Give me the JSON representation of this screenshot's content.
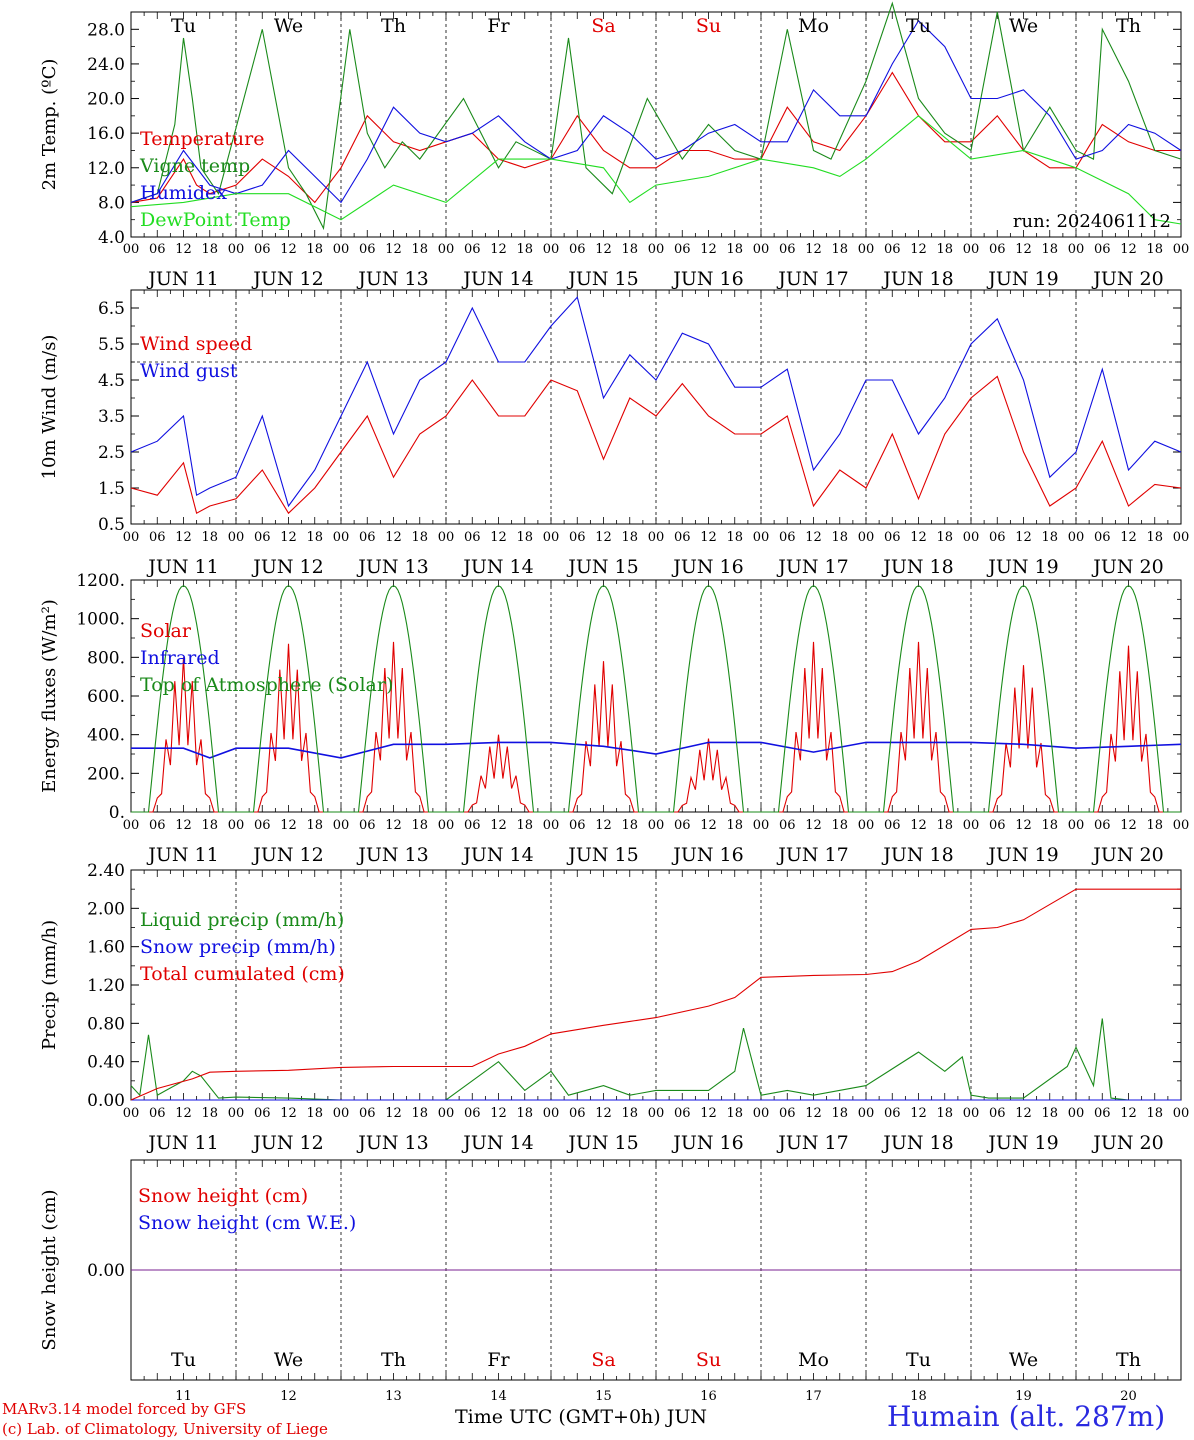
{
  "footer": {
    "model": "MARv3.14 model forced by GFS",
    "lab": "(c) Lab. of Climatology, University of Liege",
    "xaxis_title": "Time UTC (GMT+0h) JUN",
    "station": "Humain (alt. 287m)"
  },
  "colors": {
    "red": "#e00000",
    "blue": "#1010e0",
    "green": "#1a8a1a",
    "lightgreen": "#22dd22",
    "purple": "#7a2090"
  },
  "axis": {
    "hour_labels": [
      "00",
      "06",
      "12",
      "18"
    ],
    "day_labels": [
      "JUN 11",
      "JUN 12",
      "JUN 13",
      "JUN 14",
      "JUN 15",
      "JUN 16",
      "JUN 17",
      "JUN 18",
      "JUN 19",
      "JUN 20"
    ],
    "weekdays": [
      "Tu",
      "We",
      "Th",
      "Fr",
      "Sa",
      "Su",
      "Mo",
      "Tu",
      "We",
      "Th"
    ],
    "weekday_colors": [
      "#000000",
      "#000000",
      "#000000",
      "#000000",
      "#e00000",
      "#e00000",
      "#000000",
      "#000000",
      "#000000",
      "#000000"
    ],
    "day_numbers": [
      "11",
      "12",
      "13",
      "14",
      "15",
      "16",
      "17",
      "18",
      "19",
      "20"
    ]
  },
  "chart_data": [
    {
      "type": "line",
      "id": "temp",
      "ylabel": "2m Temp. (ºC)",
      "ylim": [
        4,
        30
      ],
      "yticks": [
        "4.0",
        "8.0",
        "12.0",
        "16.0",
        "20.0",
        "24.0",
        "28.0"
      ],
      "ytick_values": [
        4,
        8,
        12,
        16,
        20,
        24,
        28
      ],
      "annotation": "run: 2024061112",
      "series": [
        {
          "name": "Temperature",
          "color": "#e00000",
          "x": [
            0,
            6,
            12,
            15,
            18,
            24,
            30,
            36,
            42,
            48,
            54,
            60,
            66,
            72,
            78,
            84,
            90,
            96,
            102,
            108,
            114,
            120,
            126,
            132,
            138,
            144,
            150,
            156,
            162,
            168,
            174,
            180,
            186,
            192,
            198,
            204,
            210,
            216,
            222,
            228,
            234,
            240
          ],
          "y": [
            8,
            8.5,
            13,
            10,
            9,
            10,
            13,
            11,
            8,
            12,
            18,
            15,
            14,
            15,
            16,
            13,
            12,
            13,
            18,
            14,
            12,
            12,
            14,
            14,
            13,
            13,
            19,
            15,
            14,
            18,
            23,
            18,
            15,
            15,
            18,
            14,
            12,
            12,
            17,
            15,
            14,
            14
          ]
        },
        {
          "name": "Vigne temp",
          "color": "#1a8a1a",
          "x": [
            0,
            6,
            10,
            12,
            14,
            16,
            20,
            30,
            36,
            40,
            44,
            50,
            54,
            58,
            62,
            66,
            76,
            84,
            88,
            96,
            100,
            104,
            110,
            118,
            126,
            132,
            138,
            144,
            150,
            156,
            160,
            168,
            174,
            180,
            186,
            192,
            198,
            204,
            210,
            216,
            220,
            222,
            228,
            234,
            240
          ],
          "y": [
            8,
            9,
            17,
            27,
            20,
            12,
            9,
            28,
            12,
            9,
            5,
            28,
            16,
            12,
            15,
            13,
            20,
            12,
            15,
            13,
            27,
            12,
            9,
            20,
            13,
            17,
            14,
            13,
            28,
            14,
            13,
            22,
            31,
            20,
            16,
            14,
            30,
            14,
            19,
            14,
            13,
            28,
            22,
            14,
            13
          ]
        },
        {
          "name": "Humidex",
          "color": "#1010e0",
          "x": [
            0,
            6,
            12,
            18,
            24,
            30,
            36,
            42,
            48,
            54,
            60,
            66,
            72,
            78,
            84,
            90,
            96,
            102,
            108,
            114,
            120,
            126,
            132,
            138,
            144,
            150,
            156,
            162,
            168,
            174,
            180,
            186,
            192,
            198,
            204,
            210,
            216,
            222,
            228,
            234,
            240
          ],
          "y": [
            8,
            9,
            14,
            10,
            9,
            10,
            14,
            11,
            8,
            13,
            19,
            16,
            15,
            16,
            18,
            15,
            13,
            14,
            18,
            16,
            13,
            14,
            16,
            17,
            15,
            15,
            21,
            18,
            18,
            24,
            29,
            26,
            20,
            20,
            21,
            18,
            13,
            14,
            17,
            16,
            14
          ]
        },
        {
          "name": "DewPoint Temp",
          "color": "#22dd22",
          "x": [
            0,
            12,
            24,
            36,
            48,
            60,
            72,
            84,
            96,
            108,
            114,
            120,
            132,
            144,
            156,
            162,
            168,
            180,
            192,
            204,
            216,
            228,
            234,
            240
          ],
          "y": [
            7.5,
            8,
            9,
            9,
            6,
            10,
            8,
            13,
            13,
            12,
            8,
            10,
            11,
            13,
            12,
            11,
            13,
            18,
            13,
            14,
            12,
            9,
            6,
            5.5
          ]
        }
      ]
    },
    {
      "type": "line",
      "id": "wind",
      "ylabel": "10m Wind (m/s)",
      "ylim": [
        0.5,
        7
      ],
      "yticks": [
        "0.5",
        "1.5",
        "2.5",
        "3.5",
        "4.5",
        "5.5",
        "6.5"
      ],
      "ytick_values": [
        0.5,
        1.5,
        2.5,
        3.5,
        4.5,
        5.5,
        6.5
      ],
      "reference_line": 5,
      "series": [
        {
          "name": "Wind speed",
          "color": "#e00000",
          "x": [
            0,
            6,
            12,
            15,
            18,
            24,
            30,
            36,
            42,
            48,
            54,
            60,
            66,
            72,
            78,
            84,
            90,
            96,
            102,
            108,
            114,
            120,
            126,
            132,
            138,
            144,
            150,
            156,
            162,
            168,
            174,
            180,
            186,
            192,
            198,
            204,
            210,
            216,
            222,
            228,
            234,
            240
          ],
          "y": [
            1.5,
            1.3,
            2.2,
            0.8,
            1.0,
            1.2,
            2.0,
            0.8,
            1.5,
            2.5,
            3.5,
            1.8,
            3.0,
            3.5,
            4.5,
            3.5,
            3.5,
            4.5,
            4.2,
            2.3,
            4.0,
            3.5,
            4.4,
            3.5,
            3.0,
            3.0,
            3.5,
            1.0,
            2.0,
            1.5,
            3.0,
            1.2,
            3.0,
            4.0,
            4.6,
            2.5,
            1.0,
            1.5,
            2.8,
            1.0,
            1.6,
            1.5
          ]
        },
        {
          "name": "Wind gust",
          "color": "#1010e0",
          "x": [
            0,
            6,
            12,
            15,
            18,
            24,
            30,
            36,
            42,
            48,
            54,
            60,
            66,
            72,
            78,
            84,
            90,
            96,
            102,
            108,
            114,
            120,
            126,
            132,
            138,
            144,
            150,
            156,
            162,
            168,
            174,
            180,
            186,
            192,
            198,
            204,
            210,
            216,
            222,
            228,
            234,
            240
          ],
          "y": [
            2.5,
            2.8,
            3.5,
            1.3,
            1.5,
            1.8,
            3.5,
            1.0,
            2.0,
            3.5,
            5.0,
            3.0,
            4.5,
            5.0,
            6.5,
            5.0,
            5.0,
            6.0,
            6.8,
            4.0,
            5.2,
            4.5,
            5.8,
            5.5,
            4.3,
            4.3,
            4.8,
            2.0,
            3.0,
            4.5,
            4.5,
            3.0,
            4.0,
            5.5,
            6.2,
            4.5,
            1.8,
            2.5,
            4.8,
            2.0,
            2.8,
            2.5
          ]
        }
      ]
    },
    {
      "type": "line",
      "id": "energy",
      "ylabel": "Energy fluxes (W/m²)",
      "ylim": [
        0,
        1200
      ],
      "yticks": [
        "0.",
        "200.",
        "400.",
        "600.",
        "800.",
        "1000.",
        "1200."
      ],
      "ytick_values": [
        0,
        200,
        400,
        600,
        800,
        1000,
        1200
      ],
      "toa_peak": 1170,
      "solar_peaks": [
        800,
        870,
        880,
        400,
        780,
        380,
        880,
        880,
        760,
        860
      ],
      "series": [
        {
          "name": "Solar",
          "color": "#e00000"
        },
        {
          "name": "Infrared",
          "color": "#1010e0",
          "x": [
            0,
            12,
            18,
            24,
            36,
            48,
            60,
            72,
            84,
            96,
            108,
            120,
            132,
            144,
            156,
            168,
            180,
            192,
            204,
            216,
            228,
            240
          ],
          "y": [
            330,
            330,
            280,
            330,
            330,
            280,
            350,
            350,
            360,
            360,
            340,
            300,
            360,
            360,
            310,
            360,
            360,
            360,
            350,
            330,
            340,
            350
          ]
        },
        {
          "name": "Top of Atmosphere (Solar)",
          "color": "#1a8a1a"
        }
      ]
    },
    {
      "type": "line",
      "id": "precip",
      "ylabel": "Precip (mm/h)",
      "ylim": [
        0,
        2.4
      ],
      "yticks": [
        "0.00",
        "0.40",
        "0.80",
        "1.20",
        "1.60",
        "2.00",
        "2.40"
      ],
      "ytick_values": [
        0,
        0.4,
        0.8,
        1.2,
        1.6,
        2.0,
        2.4
      ],
      "series": [
        {
          "name": "Liquid precip (mm/h)",
          "color": "#1a8a1a",
          "x": [
            0,
            2,
            4,
            6,
            8,
            12,
            14,
            16,
            20,
            24,
            36,
            48,
            60,
            72,
            84,
            90,
            96,
            100,
            108,
            114,
            120,
            132,
            138,
            140,
            144,
            150,
            156,
            168,
            180,
            186,
            190,
            192,
            196,
            200,
            204,
            214,
            216,
            220,
            222,
            224,
            228,
            240
          ],
          "y": [
            0.15,
            0.05,
            0.68,
            0.05,
            0.1,
            0.2,
            0.3,
            0.25,
            0.02,
            0.03,
            0.02,
            0.0,
            0.0,
            0.0,
            0.4,
            0.1,
            0.3,
            0.05,
            0.15,
            0.05,
            0.1,
            0.1,
            0.3,
            0.75,
            0.05,
            0.1,
            0.05,
            0.15,
            0.5,
            0.3,
            0.45,
            0.05,
            0.02,
            0.02,
            0.02,
            0.35,
            0.55,
            0.15,
            0.85,
            0.02,
            0.0,
            0.0
          ]
        },
        {
          "name": "Snow precip (mm/h)",
          "color": "#1010e0",
          "x": [
            0,
            240
          ],
          "y": [
            0,
            0
          ]
        },
        {
          "name": "Total cumulated (cm)",
          "color": "#e00000",
          "x": [
            0,
            6,
            14,
            18,
            24,
            36,
            48,
            60,
            72,
            78,
            84,
            90,
            96,
            108,
            114,
            120,
            132,
            138,
            144,
            156,
            168,
            174,
            180,
            192,
            198,
            204,
            216,
            240
          ],
          "y": [
            0.0,
            0.12,
            0.22,
            0.29,
            0.3,
            0.31,
            0.34,
            0.35,
            0.35,
            0.35,
            0.48,
            0.56,
            0.69,
            0.78,
            0.82,
            0.86,
            0.98,
            1.07,
            1.28,
            1.3,
            1.31,
            1.34,
            1.45,
            1.78,
            1.8,
            1.88,
            2.2,
            2.2
          ]
        }
      ]
    },
    {
      "type": "line",
      "id": "snow",
      "ylabel": "Snow height (cm)",
      "ylim": [
        -1,
        1
      ],
      "yticks": [
        "0.00"
      ],
      "ytick_values": [
        0
      ],
      "series": [
        {
          "name": "Snow height (cm)",
          "color": "#e00000",
          "x": [
            0,
            240
          ],
          "y": [
            0,
            0
          ]
        },
        {
          "name": "Snow height (cm W.E.)",
          "color": "#1010e0",
          "x": [
            0,
            240
          ],
          "y": [
            0,
            0
          ]
        }
      ]
    }
  ]
}
